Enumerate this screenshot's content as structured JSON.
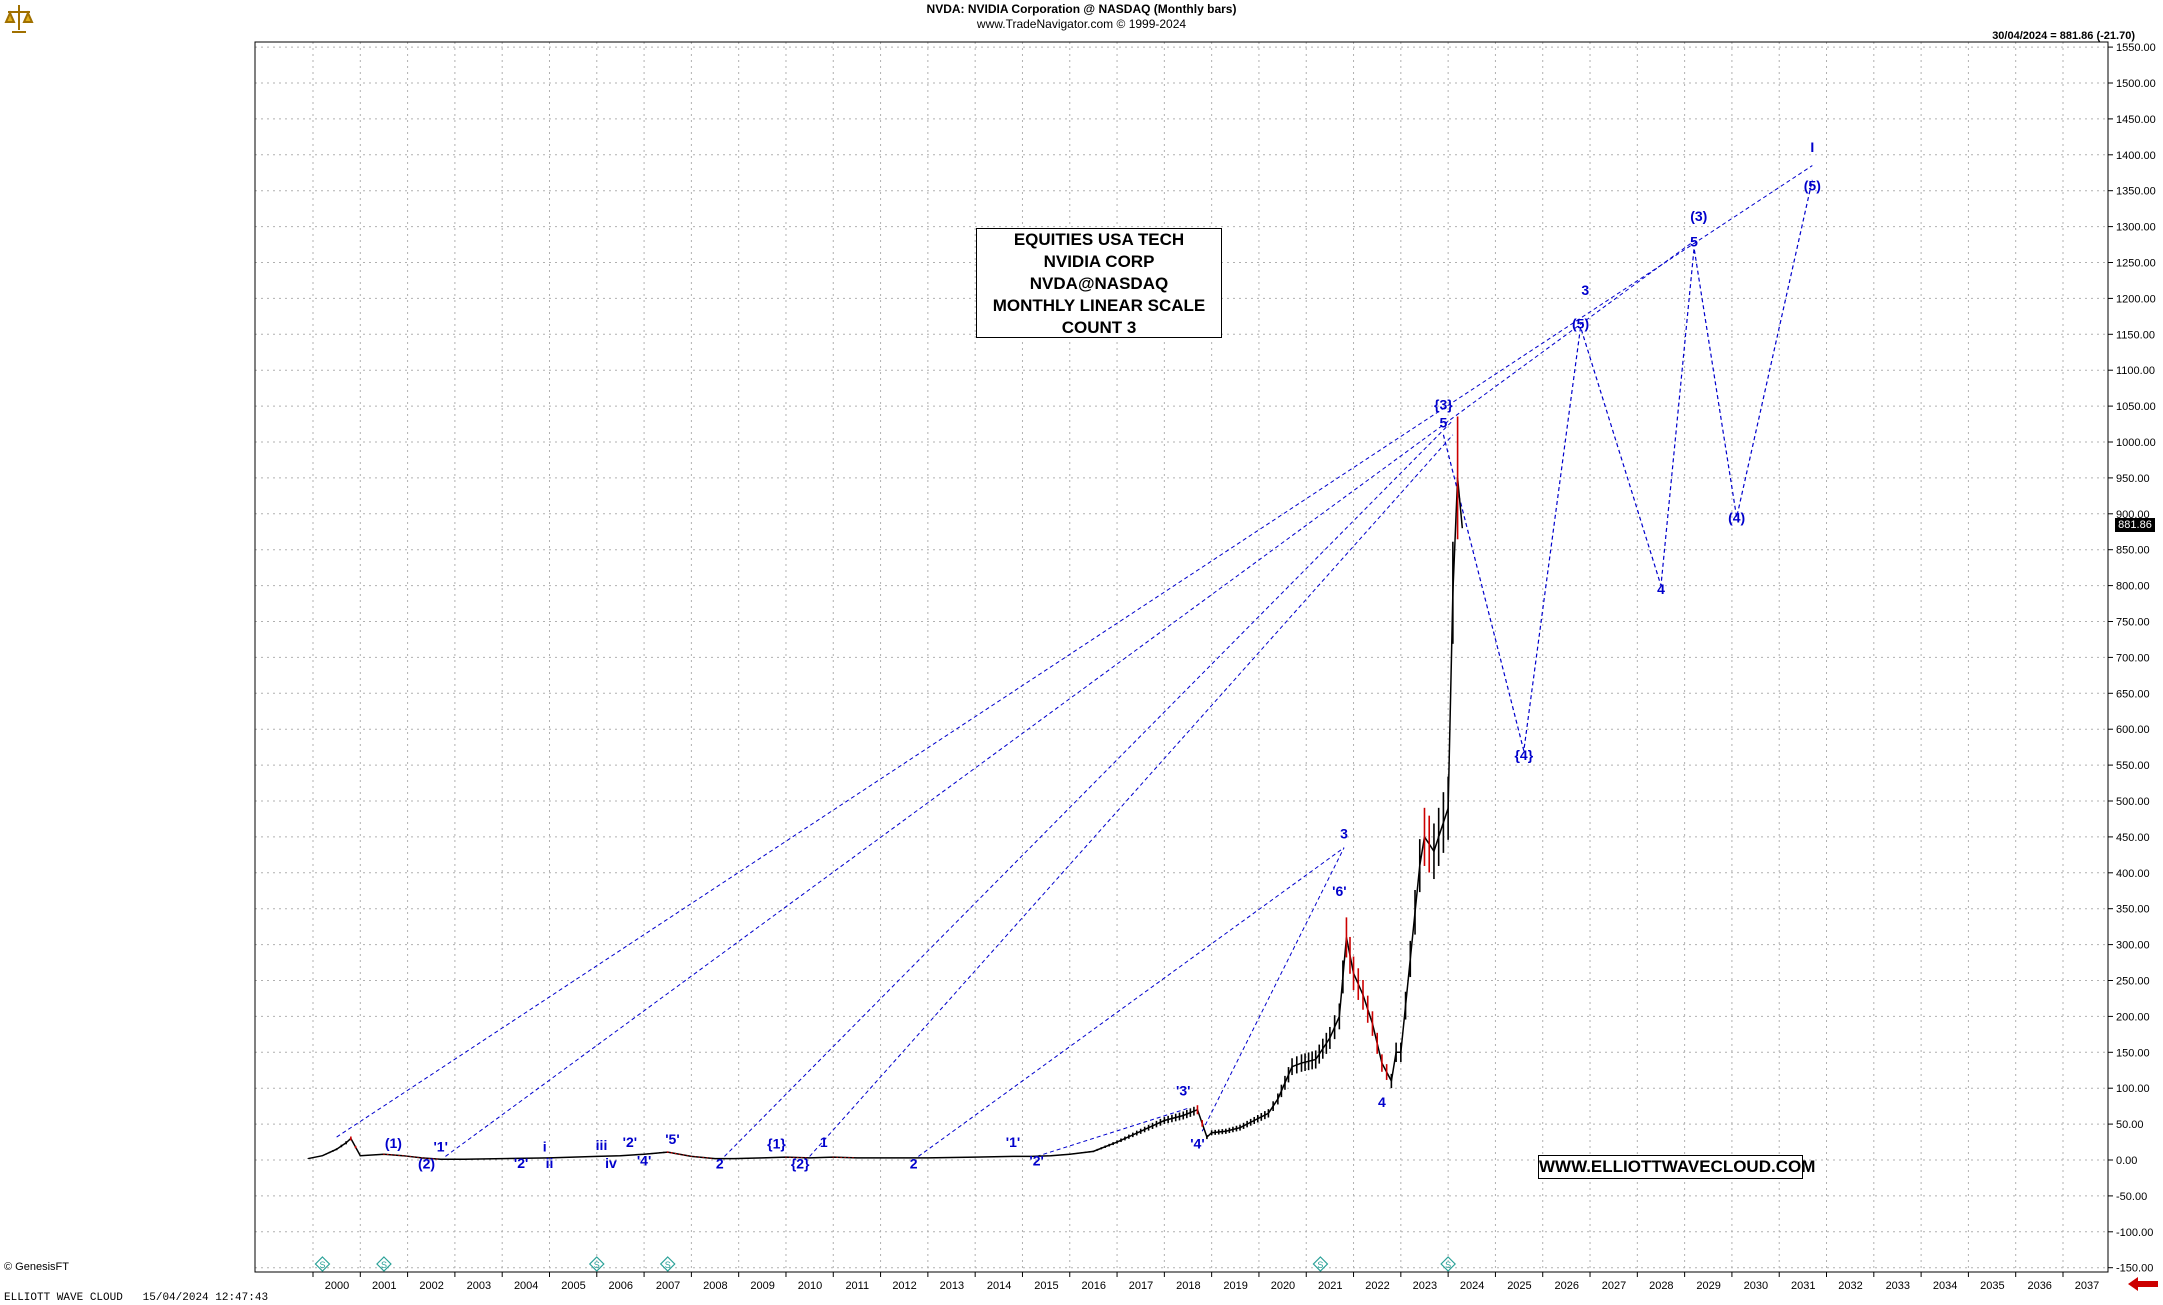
{
  "header": {
    "title": "NVDA:  NVIDIA Corporation @ NASDAQ  (Monthly bars)",
    "subtitle": "www.TradeNavigator.com © 1999-2024"
  },
  "last_readout": "30/04/2024 = 881.86 (-21.70)",
  "last_price_tag": "881.86",
  "info_box": [
    "EQUITIES USA TECH",
    "NVIDIA CORP",
    "NVDA@NASDAQ",
    "MONTHLY LINEAR SCALE",
    "COUNT 3"
  ],
  "website": "WWW.ELLIOTTWAVECLOUD.COM",
  "footer": {
    "app": "ELLIOTT WAVE CLOUD",
    "timestamp": "15/04/2024 12:47:43",
    "credit": "© GenesisFT"
  },
  "icons": {
    "logo": "scales-logo-icon",
    "nav": "left-arrow-icon",
    "markers": "s-diamond-icon"
  },
  "colors": {
    "wave": "#0000cc",
    "up_bar": "#000000",
    "down_bar": "#cc0000",
    "grid": "#b0b0b0",
    "nav_arrow": "#cc0000",
    "marker": "#2aa198"
  },
  "chart_data": {
    "type": "line",
    "title": "NVDA:  NVIDIA Corporation @ NASDAQ  (Monthly bars)",
    "xlabel": "",
    "ylabel": "",
    "ylim": [
      -150,
      1550
    ],
    "xlim": [
      1999.8,
      2037.5
    ],
    "x_ticks": [
      2000,
      2001,
      2002,
      2003,
      2004,
      2005,
      2006,
      2007,
      2008,
      2009,
      2010,
      2011,
      2012,
      2013,
      2014,
      2015,
      2016,
      2017,
      2018,
      2019,
      2020,
      2021,
      2022,
      2023,
      2024,
      2025,
      2026,
      2027,
      2028,
      2029,
      2030,
      2031,
      2032,
      2033,
      2034,
      2035,
      2036,
      2037
    ],
    "y_ticks": [
      -150,
      -100,
      -50,
      0,
      50,
      100,
      150,
      200,
      250,
      300,
      350,
      400,
      450,
      500,
      550,
      600,
      650,
      700,
      750,
      800,
      850,
      900,
      950,
      1000,
      1050,
      1100,
      1150,
      1200,
      1250,
      1300,
      1350,
      1400,
      1450,
      1500,
      1550
    ],
    "y_tick_labels": [
      "-150.00",
      "-100.00",
      "-50.00",
      "0.00",
      "50.00",
      "100.00",
      "150.00",
      "200.00",
      "250.00",
      "300.00",
      "350.00",
      "400.00",
      "450.00",
      "500.00",
      "550.00",
      "600.00",
      "650.00",
      "700.00",
      "750.00",
      "800.00",
      "850.00",
      "900.00",
      "950.00",
      "1000.00",
      "1050.00",
      "1100.00",
      "1150.00",
      "1200.00",
      "1250.00",
      "1300.00",
      "1350.00",
      "1400.00",
      "1450.00",
      "1500.00",
      "1550.00"
    ],
    "grid": true,
    "price_series": {
      "name": "NVDA",
      "x": [
        1999.9,
        2000.2,
        2000.5,
        2000.7,
        2000.8,
        2001.0,
        2001.5,
        2001.9,
        2002.3,
        2002.7,
        2003.2,
        2004.0,
        2005.0,
        2006.0,
        2006.5,
        2007.0,
        2007.5,
        2008.0,
        2008.5,
        2008.9,
        2009.5,
        2010.0,
        2010.5,
        2011.0,
        2011.5,
        2012.0,
        2013.0,
        2014.0,
        2014.8,
        2015.2,
        2015.6,
        2016.0,
        2016.5,
        2017.0,
        2017.5,
        2018.0,
        2018.4,
        2018.7,
        2018.9,
        2019.0,
        2019.3,
        2019.6,
        2019.9,
        2020.2,
        2020.4,
        2020.7,
        2020.9,
        2021.2,
        2021.5,
        2021.7,
        2021.85,
        2022.0,
        2022.2,
        2022.4,
        2022.6,
        2022.8,
        2022.9,
        2023.0,
        2023.2,
        2023.4,
        2023.5,
        2023.7,
        2023.9,
        2024.0,
        2024.1,
        2024.2,
        2024.3
      ],
      "values": [
        2,
        6,
        15,
        24,
        30,
        6,
        8,
        6,
        3,
        1,
        1,
        2,
        3,
        5,
        6,
        8,
        11,
        5,
        2,
        2,
        3,
        4,
        3,
        4,
        3,
        3,
        3,
        4,
        5,
        5,
        6,
        8,
        12,
        25,
        40,
        55,
        62,
        70,
        32,
        38,
        40,
        45,
        55,
        65,
        85,
        130,
        135,
        140,
        170,
        200,
        310,
        260,
        230,
        190,
        135,
        110,
        150,
        150,
        280,
        410,
        450,
        430,
        470,
        490,
        790,
        950,
        880
      ],
      "wave_color": "#0000cc"
    },
    "wave_labels": [
      {
        "text": "(1)",
        "x": 2001.7,
        "y": 17
      },
      {
        "text": "(2)",
        "x": 2002.4,
        "y": -12
      },
      {
        "text": "'1'",
        "x": 2002.7,
        "y": 12
      },
      {
        "text": "'2'",
        "x": 2004.4,
        "y": -11
      },
      {
        "text": "i",
        "x": 2004.9,
        "y": 12
      },
      {
        "text": "ii",
        "x": 2005.0,
        "y": -11
      },
      {
        "text": "iii",
        "x": 2006.1,
        "y": 14
      },
      {
        "text": "iv",
        "x": 2006.3,
        "y": -11
      },
      {
        "text": "'2'",
        "x": 2006.7,
        "y": 18
      },
      {
        "text": "'4'",
        "x": 2007.0,
        "y": -8
      },
      {
        "text": "'5'",
        "x": 2007.6,
        "y": 22
      },
      {
        "text": "2",
        "x": 2008.6,
        "y": -12
      },
      {
        "text": "{1}",
        "x": 2009.8,
        "y": 16
      },
      {
        "text": "{2}",
        "x": 2010.3,
        "y": -12
      },
      {
        "text": "1",
        "x": 2010.8,
        "y": 18
      },
      {
        "text": "2",
        "x": 2012.7,
        "y": -12
      },
      {
        "text": "'1'",
        "x": 2014.8,
        "y": 18
      },
      {
        "text": "'2'",
        "x": 2015.3,
        "y": -8
      },
      {
        "text": "'3'",
        "x": 2018.4,
        "y": 90
      },
      {
        "text": "'4'",
        "x": 2018.7,
        "y": 16
      },
      {
        "text": "'6'",
        "x": 2021.7,
        "y": 368
      },
      {
        "text": "3",
        "x": 2021.8,
        "y": 448
      },
      {
        "text": "4",
        "x": 2022.6,
        "y": 74
      },
      {
        "text": "5",
        "x": 2023.9,
        "y": 1020
      },
      {
        "text": "{3}",
        "x": 2023.9,
        "y": 1045
      },
      {
        "text": "{4}",
        "x": 2025.6,
        "y": 557
      },
      {
        "text": "(5)",
        "x": 2026.8,
        "y": 1158
      },
      {
        "text": "3",
        "x": 2026.9,
        "y": 1205
      },
      {
        "text": "4",
        "x": 2028.5,
        "y": 788
      },
      {
        "text": "5",
        "x": 2029.2,
        "y": 1272
      },
      {
        "text": "(3)",
        "x": 2029.3,
        "y": 1308
      },
      {
        "text": "(4)",
        "x": 2030.1,
        "y": 888
      },
      {
        "text": "(5)",
        "x": 2031.7,
        "y": 1350
      },
      {
        "text": "I",
        "x": 2031.7,
        "y": 1404
      }
    ],
    "projection_path": {
      "x": [
        2023.9,
        2025.6,
        2026.8,
        2028.5,
        2029.2,
        2030.1,
        2031.7
      ],
      "values": [
        1010,
        570,
        1160,
        800,
        1270,
        895,
        1365
      ]
    },
    "channel_lines": [
      {
        "x": [
          2000.5,
          2031.7
        ],
        "values": [
          32,
          1385
        ]
      },
      {
        "x": [
          2002.8,
          2029.2
        ],
        "values": [
          5,
          1280
        ]
      },
      {
        "x": [
          2008.7,
          2024.1
        ],
        "values": [
          5,
          1030
        ]
      },
      {
        "x": [
          2010.5,
          2024.1
        ],
        "values": [
          5,
          1010
        ]
      },
      {
        "x": [
          2012.8,
          2021.8
        ],
        "values": [
          5,
          435
        ]
      },
      {
        "x": [
          2015.3,
          2018.5
        ],
        "values": [
          5,
          72
        ]
      },
      {
        "x": [
          2018.8,
          2021.8
        ],
        "values": [
          40,
          435
        ]
      }
    ],
    "s_markers_x": [
      2000.2,
      2001.5,
      2006.0,
      2007.5,
      2021.3,
      2024.0
    ]
  }
}
